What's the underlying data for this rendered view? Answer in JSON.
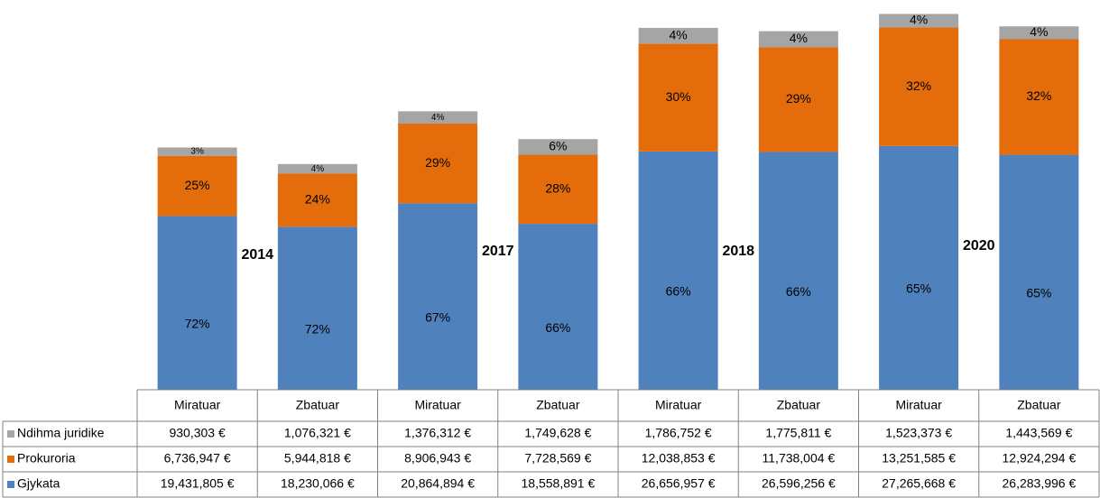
{
  "chart_data": {
    "type": "stacked_bar",
    "categories": [
      "Miratuar",
      "Zbatuar",
      "Miratuar",
      "Zbatuar",
      "Miratuar",
      "Zbatuar",
      "Miratuar",
      "Zbatuar"
    ],
    "annotations": [
      "2014",
      "2017",
      "2018",
      "2020"
    ],
    "ylim": [
      0,
      43600000
    ],
    "series": [
      {
        "name": "Gjykata",
        "color": "#4f81bd",
        "values": [
          19431805,
          18230066,
          20864894,
          18558891,
          26656957,
          26596256,
          27265668,
          26283996
        ],
        "value_labels": [
          "19,431,805 €",
          "18,230,066 €",
          "20,864,894 €",
          "18,558,891 €",
          "26,656,957 €",
          "26,596,256 €",
          "27,265,668 €",
          "26,283,996 €"
        ],
        "share_labels": [
          "72%",
          "72%",
          "67%",
          "66%",
          "66%",
          "66%",
          "65%",
          "65%"
        ]
      },
      {
        "name": "Prokuroria",
        "color": "#e46c0a",
        "values": [
          6736947,
          5944818,
          8906943,
          7728569,
          12038853,
          11738004,
          13251585,
          12924294
        ],
        "value_labels": [
          "6,736,947 €",
          "5,944,818 €",
          "8,906,943 €",
          "7,728,569 €",
          "12,038,853 €",
          "11,738,004 €",
          "13,251,585 €",
          "12,924,294 €"
        ],
        "share_labels": [
          "25%",
          "24%",
          "29%",
          "28%",
          "30%",
          "29%",
          "32%",
          "32%"
        ]
      },
      {
        "name": "Ndihma juridike",
        "color": "#a5a5a5",
        "values": [
          930303,
          1076321,
          1376312,
          1749628,
          1786752,
          1775811,
          1523373,
          1443569
        ],
        "value_labels": [
          "930,303 €",
          "1,076,321 €",
          "1,376,312 €",
          "1,749,628 €",
          "1,786,752 €",
          "1,775,811 €",
          "1,523,373 €",
          "1,443,569 €"
        ],
        "share_labels": [
          "3%",
          "4%",
          "4%",
          "6%",
          "4%",
          "4%",
          "4%",
          "4%"
        ]
      }
    ]
  }
}
